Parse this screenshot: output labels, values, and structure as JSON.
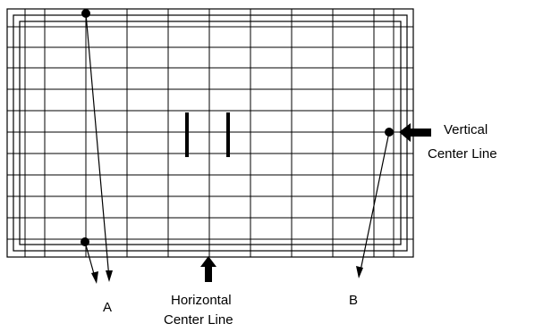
{
  "labels": {
    "a": "A",
    "b": "B",
    "vertical_line": [
      "Vertical",
      "Center Line"
    ],
    "horizontal_line": [
      "Horizontal",
      "Center Line"
    ]
  },
  "colors": {
    "line": "#000000",
    "background": "#ffffff"
  }
}
